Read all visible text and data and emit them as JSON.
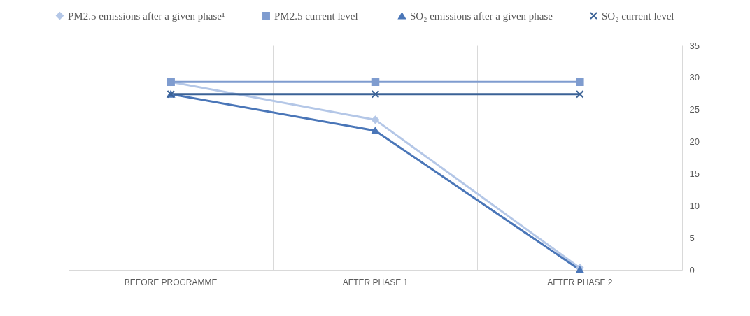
{
  "chart_data": {
    "type": "line",
    "categories": [
      "BEFORE PROGRAMME",
      "AFTER PHASE 1",
      "AFTER PHASE 2"
    ],
    "series": [
      {
        "name": "PM2.5 emissions after a given phase¹",
        "color": "#b4c7e7",
        "marker": "diamond",
        "values": [
          29.3,
          23.4,
          0.3
        ]
      },
      {
        "name": "PM2.5  current level",
        "color": "#7f9ccf",
        "marker": "square",
        "values": [
          29.3,
          29.3,
          29.3
        ]
      },
      {
        "name": "SO₂ emissions after a given phase",
        "color": "#4a76b8",
        "marker": "triangle",
        "values": [
          27.4,
          21.7,
          0
        ]
      },
      {
        "name": "SO₂ current level",
        "color": "#3b6296",
        "marker": "cross",
        "values": [
          27.4,
          27.4,
          27.4
        ]
      }
    ],
    "ylim": [
      0,
      35
    ],
    "yticks": [
      0,
      5,
      10,
      15,
      20,
      25,
      30,
      35
    ],
    "grid": "x",
    "legend": "top",
    "line_style": "solid"
  }
}
